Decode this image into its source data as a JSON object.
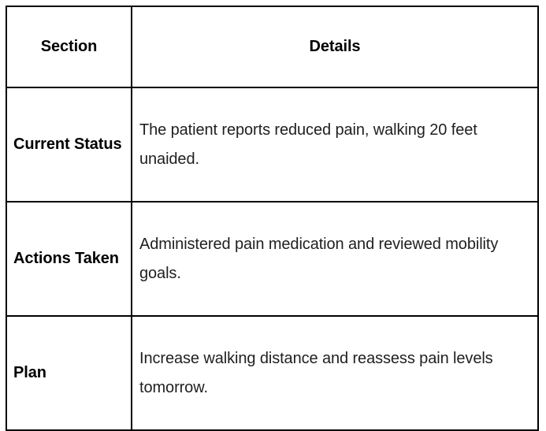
{
  "table": {
    "header": {
      "section_label": "Section",
      "details_label": "Details"
    },
    "rows": [
      {
        "section": "Current Status",
        "details": "The patient reports reduced pain, walking 20 feet unaided."
      },
      {
        "section": "Actions Taken",
        "details": "Administered pain medication and reviewed mobility goals."
      },
      {
        "section": "Plan",
        "details": "Increase walking distance and reassess pain levels tomorrow."
      }
    ],
    "colors": {
      "border": "#000000",
      "background": "#ffffff",
      "header_text": "#000000",
      "section_text": "#000000",
      "details_text": "#1f1f1f"
    }
  }
}
